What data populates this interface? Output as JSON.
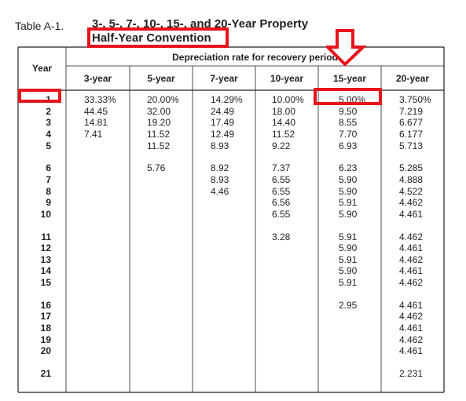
{
  "table_label": "Table A-1.",
  "title": "3-, 5-, 7-, 10-, 15-, and 20-Year Property",
  "subtitle": "Half-Year Convention",
  "header": {
    "year": "Year",
    "group": "Depreciation rate for recovery period",
    "columns": [
      "3-year",
      "5-year",
      "7-year",
      "10-year",
      "15-year",
      "20-year"
    ]
  },
  "table": {
    "years": [
      "1",
      "2",
      "3",
      "4",
      "5",
      "6",
      "7",
      "8",
      "9",
      "10",
      "11",
      "12",
      "13",
      "14",
      "15",
      "16",
      "17",
      "18",
      "19",
      "20",
      "21"
    ],
    "col_3yr": [
      "33.33%",
      "44.45",
      "14.81",
      "7.41"
    ],
    "col_5yr": [
      "20.00%",
      "32.00",
      "19.20",
      "11.52",
      "11.52",
      "5.76"
    ],
    "col_7yr": [
      "14.29%",
      "24.49",
      "17.49",
      "12.49",
      "8.93",
      "8.92",
      "8.93",
      "4.46"
    ],
    "col_10yr": [
      "10.00%",
      "18.00",
      "14.40",
      "11.52",
      "9.22",
      "7.37",
      "6.55",
      "6.55",
      "6.56",
      "6.55",
      "3.28"
    ],
    "col_15yr": [
      "5.00%",
      "9.50",
      "8.55",
      "7.70",
      "6.93",
      "6.23",
      "5.90",
      "5.90",
      "5.91",
      "5.90",
      "5.91",
      "5.90",
      "5.91",
      "5.90",
      "5.91",
      "2.95"
    ],
    "col_20yr": [
      "3.750%",
      "7.219",
      "6.677",
      "6.177",
      "5.713",
      "5.285",
      "4.888",
      "4.522",
      "4.462",
      "4.461",
      "4.462",
      "4.461",
      "4.462",
      "4.461",
      "4.462",
      "4.461",
      "4.462",
      "4.461",
      "4.462",
      "4.461",
      "2.231"
    ]
  },
  "annotation_color": "#e8141c"
}
